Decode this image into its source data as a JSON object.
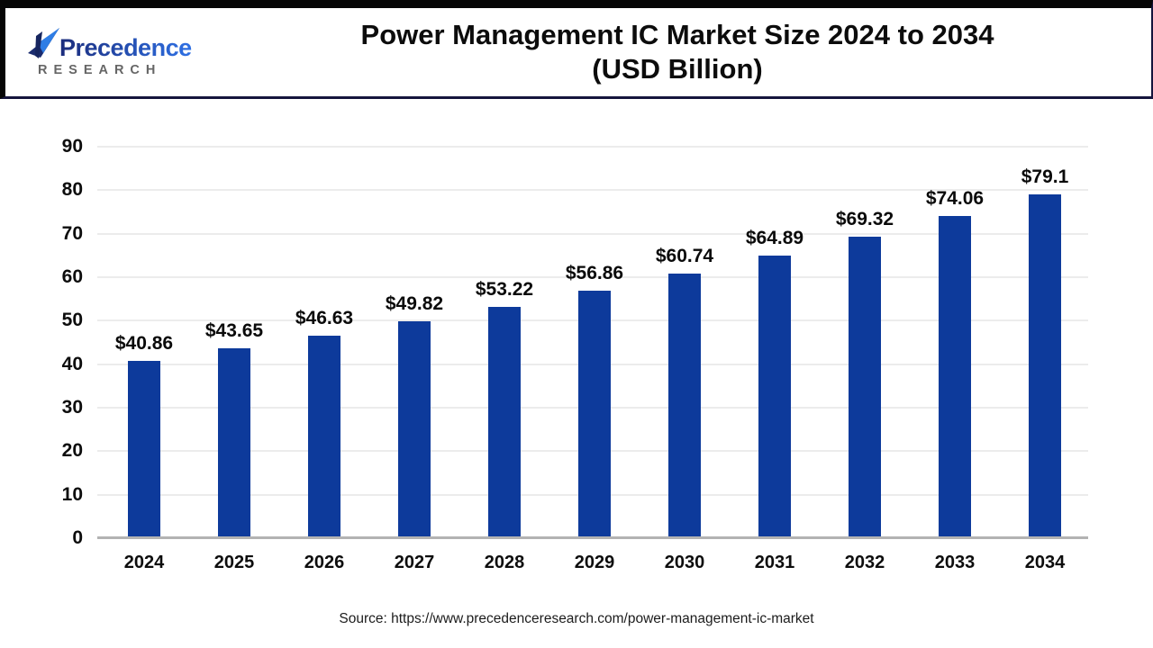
{
  "logo": {
    "brand_top": "Precedence",
    "brand_bottom": "RESEARCH",
    "colors": {
      "navy": "#1b2c7c",
      "blue": "#2e70e4",
      "gray": "#666666"
    }
  },
  "header": {
    "title_line1": "Power Management IC Market Size 2024 to 2034",
    "title_line2": "(USD Billion)"
  },
  "footer": {
    "source": "Source: https://www.precedenceresearch.com/power-management-ic-market"
  },
  "chart_data": {
    "type": "bar",
    "title": "Power Management IC Market Size 2024 to 2034 (USD Billion)",
    "categories": [
      "2024",
      "2025",
      "2026",
      "2027",
      "2028",
      "2029",
      "2030",
      "2031",
      "2032",
      "2033",
      "2034"
    ],
    "values": [
      40.86,
      43.65,
      46.63,
      49.82,
      53.22,
      56.86,
      60.74,
      64.89,
      69.32,
      74.06,
      79.1
    ],
    "value_labels": [
      "$40.86",
      "$43.65",
      "$46.63",
      "$49.82",
      "$53.22",
      "$56.86",
      "$60.74",
      "$64.89",
      "$69.32",
      "$74.06",
      "$79.1"
    ],
    "xlabel": "",
    "ylabel": "",
    "ylim": [
      0,
      90
    ],
    "yticks": [
      0,
      10,
      20,
      30,
      40,
      50,
      60,
      70,
      80,
      90
    ],
    "grid": "horizontal",
    "legend": "none",
    "bar_color": "#0d3a9b",
    "gridline_color": "#ececec",
    "baseline_color": "#b3b3b3"
  }
}
